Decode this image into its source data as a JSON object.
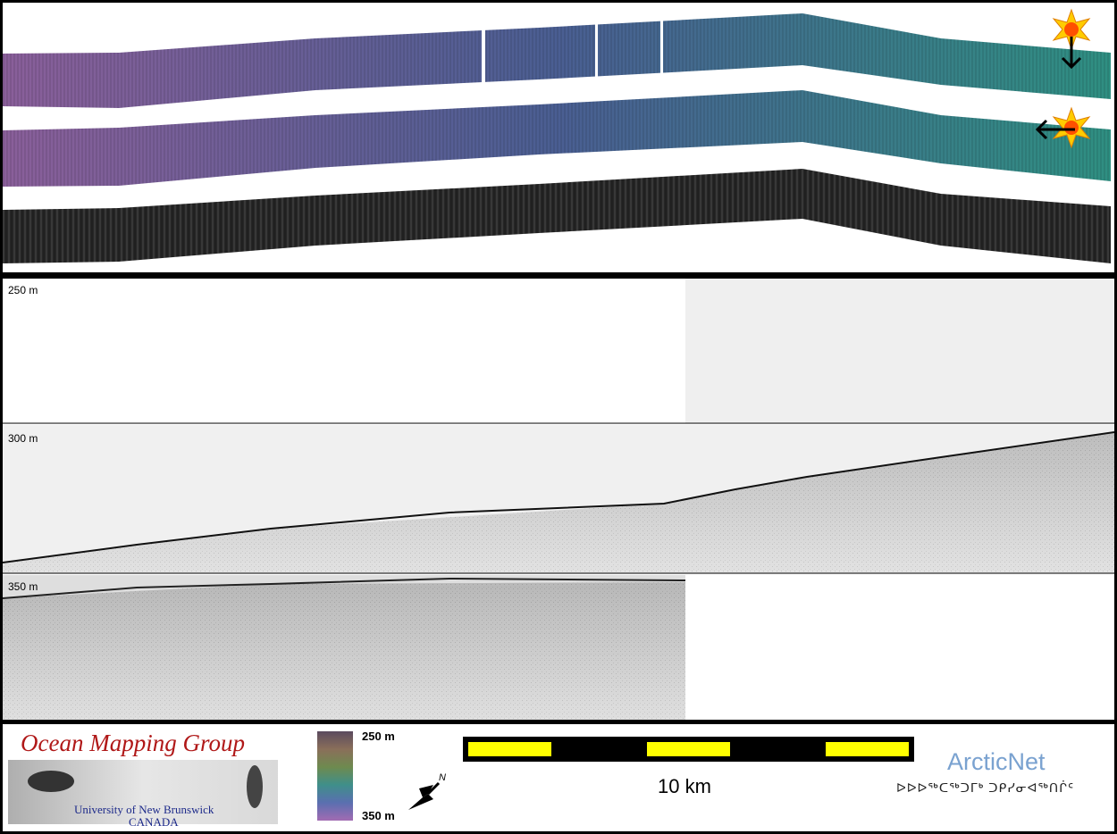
{
  "swath": {
    "lighting_arrow_1": "arrow-down",
    "lighting_arrow_2": "arrow-left"
  },
  "profile": {
    "depth_labels": [
      "250 m",
      "300 m",
      "350 m"
    ]
  },
  "legend": {
    "omg": {
      "title": "Ocean Mapping Group",
      "university": "University of New Brunswick",
      "country": "CANADA"
    },
    "colorbar": {
      "top_label": "250 m",
      "bottom_label": "350 m",
      "colors": [
        "#5b4a5e",
        "#8a6f5a",
        "#6e8a4f",
        "#3f8f8a",
        "#5a6fb0",
        "#a26bb2"
      ]
    },
    "north_arrow_label": "N",
    "scale_label": "10 km",
    "arcticnet": {
      "name": "ArcticNet",
      "syllabics": "ᐅᐅᐅᖅᑕᖅᑐᒥᒃ ᑐᑭᓯᓂᐊᖅᑎᒌᑦ"
    }
  },
  "colors": {
    "swath_start": "#8a5f9a",
    "swath_mid": "#4a5e92",
    "swath_end": "#2f8f82",
    "scale_yellow": "#ffff00"
  }
}
